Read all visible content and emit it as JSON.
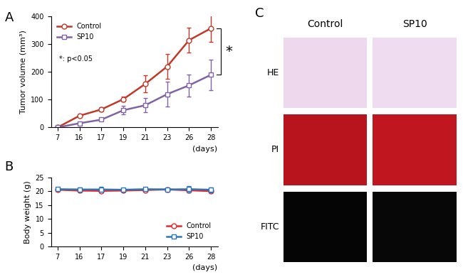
{
  "chart_data": [
    {
      "type": "line",
      "title": "A",
      "categories": [
        "7",
        "16",
        "17",
        "19",
        "21",
        "23",
        "26",
        "28"
      ],
      "x_label": "(days)",
      "y_label": "Tumor volume (mm³)",
      "ylim": [
        0,
        400
      ],
      "yticks": [
        0,
        100,
        200,
        300,
        400
      ],
      "legend": "upper left",
      "annotations": [
        "*: p<0.05",
        "*"
      ],
      "series": [
        {
          "name": "Control",
          "color": "#c0392b",
          "marker": "o",
          "values": [
            0,
            42,
            65,
            102,
            157,
            220,
            315,
            358
          ],
          "errors": [
            0,
            5,
            8,
            8,
            30,
            45,
            45,
            50
          ]
        },
        {
          "name": "SP10",
          "color": "#8064a2",
          "marker": "s",
          "values": [
            0,
            15,
            28,
            62,
            80,
            120,
            152,
            190
          ],
          "errors": [
            0,
            5,
            5,
            15,
            25,
            45,
            40,
            55
          ]
        }
      ]
    },
    {
      "type": "line",
      "title": "B",
      "categories": [
        "7",
        "16",
        "17",
        "19",
        "21",
        "23",
        "26",
        "28"
      ],
      "x_label": "(days)",
      "y_label": "Body weight (g)",
      "ylim": [
        0,
        25
      ],
      "yticks": [
        0,
        5,
        10,
        15,
        20,
        25
      ],
      "legend": "lower right",
      "series": [
        {
          "name": "Control",
          "color": "#e8262b",
          "marker": "o",
          "values": [
            20.5,
            20.2,
            20.1,
            20.2,
            20.4,
            20.6,
            20.3,
            20.0
          ],
          "errors": [
            0.4,
            0.5,
            0.6,
            0.5,
            0.5,
            0.4,
            0.6,
            0.6
          ]
        },
        {
          "name": "SP10",
          "color": "#2e75b6",
          "marker": "s",
          "values": [
            20.7,
            20.6,
            20.6,
            20.5,
            20.7,
            20.6,
            20.7,
            20.5
          ],
          "errors": [
            0.4,
            0.8,
            0.9,
            0.6,
            0.6,
            0.4,
            1.1,
            0.9
          ]
        }
      ]
    }
  ],
  "image_panel": {
    "title": "C",
    "columns": [
      "Control",
      "SP10"
    ],
    "rows": [
      "HE",
      "PI",
      "FITC"
    ]
  }
}
